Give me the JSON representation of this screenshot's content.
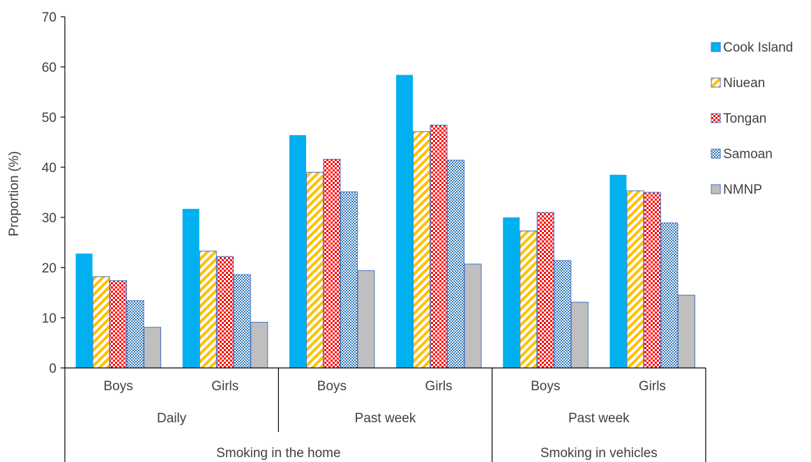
{
  "chart_data": {
    "type": "bar",
    "title": "",
    "xlabel": "",
    "ylabel": "Proportion (%)",
    "ylim": [
      0,
      70
    ],
    "yticks": [
      0,
      10,
      20,
      30,
      40,
      50,
      60,
      70
    ],
    "grid": false,
    "legend_position": "right",
    "categories": [
      "Boys",
      "Girls",
      "Boys",
      "Girls",
      "Boys",
      "Girls"
    ],
    "category_groups_level1": [
      {
        "label": "Daily",
        "span": [
          0,
          1
        ]
      },
      {
        "label": "Past week",
        "span": [
          2,
          3
        ]
      },
      {
        "label": "Past week",
        "span": [
          4,
          5
        ]
      }
    ],
    "category_groups_level2": [
      {
        "label": "Smoking in the home",
        "span": [
          0,
          3
        ]
      },
      {
        "label": "Smoking in vehicles",
        "span": [
          4,
          5
        ]
      }
    ],
    "series": [
      {
        "name": "Cook Island",
        "values": [
          22.8,
          31.7,
          46.4,
          58.4,
          30.0,
          38.5
        ],
        "color": "#00B0F0",
        "pattern": "solid"
      },
      {
        "name": "Niuean",
        "values": [
          18.2,
          23.3,
          39.0,
          47.1,
          27.3,
          35.3
        ],
        "color": "#FFC000",
        "pattern": "diagonal"
      },
      {
        "name": "Tongan",
        "values": [
          17.4,
          22.2,
          41.6,
          48.4,
          31.0,
          35.0
        ],
        "color": "#FF0000",
        "pattern": "checker"
      },
      {
        "name": "Samoan",
        "values": [
          13.4,
          18.6,
          35.1,
          41.4,
          21.4,
          28.9
        ],
        "color": "#2E75B6",
        "pattern": "dots"
      },
      {
        "name": "NMNP",
        "values": [
          8.1,
          9.1,
          19.4,
          20.7,
          13.1,
          14.5
        ],
        "color": "#BFBFBF",
        "pattern": "solid"
      }
    ]
  }
}
